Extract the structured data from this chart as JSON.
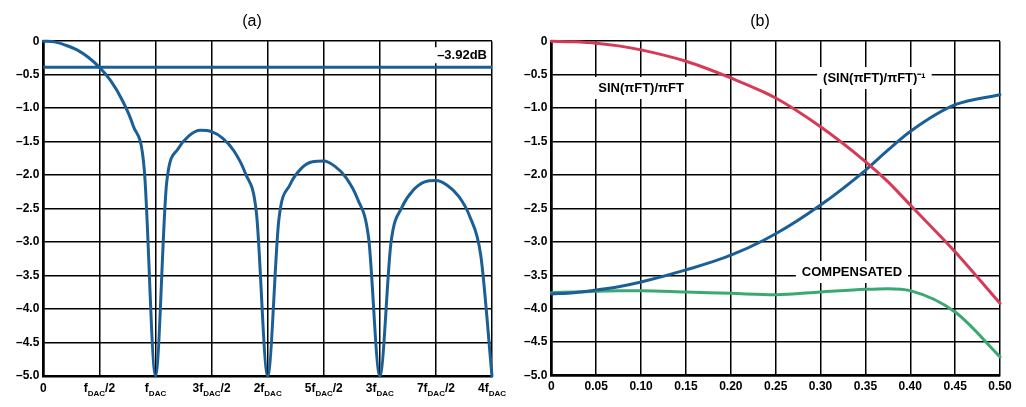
{
  "chart_data": [
    {
      "type": "line",
      "title": "(a)",
      "categories": [
        "0",
        null,
        null,
        null,
        null,
        "f$_{DAC}$/2",
        null,
        null,
        null,
        null,
        "f$_{DAC}$",
        null,
        null,
        null,
        null,
        "3f$_{DAC}$/2",
        null,
        null,
        null,
        null,
        "2f$_{DAC}$",
        null,
        null,
        null,
        null,
        "5f$_{DAC}$/2",
        null,
        null,
        null,
        null,
        "3f$_{DAC}$",
        null,
        null,
        null,
        null,
        "7f$_{DAC}$/2",
        null,
        null,
        null,
        null,
        "4f$_{DAC}$"
      ],
      "series": [
        {
          "color": "#1b5f97",
          "values": [
            0,
            -0.01,
            -0.06,
            -0.13,
            -0.24,
            -0.39,
            -0.59,
            -0.87,
            -1.26,
            -1.92,
            -5,
            -2.1,
            -1.61,
            -1.41,
            -1.33,
            -1.35,
            -1.45,
            -1.64,
            -1.97,
            -2.57,
            -5,
            -2.66,
            -2.14,
            -1.9,
            -1.8,
            -1.79,
            -1.87,
            -2.04,
            -2.35,
            -2.94,
            -5,
            -3.0,
            -2.47,
            -2.22,
            -2.1,
            -2.08,
            -2.15,
            -2.31,
            -2.61,
            -3.2,
            -5
          ]
        }
      ],
      "ylim": [
        -5,
        0
      ],
      "yticks": [
        0,
        {
          "value": -0.5,
          "label": "–0.5"
        },
        {
          "value": -1,
          "label": "–1.0"
        },
        {
          "value": -1.5,
          "label": "–1.5"
        },
        {
          "value": -2,
          "label": "–2.0"
        },
        {
          "value": -2.5,
          "label": "–2.5"
        },
        {
          "value": -3,
          "label": "–3.0"
        },
        {
          "value": -3.5,
          "label": "–3.5"
        },
        {
          "value": -4,
          "label": "–4.0"
        },
        {
          "value": -4.5,
          "label": "–4.5"
        },
        {
          "value": -5,
          "label": "–5.0"
        }
      ],
      "ref_lines": [
        {
          "axis": "y",
          "value": -0.39,
          "label": "–3.92dB",
          "color": "#1b5f97"
        }
      ],
      "grid": true,
      "legend": false,
      "marker": "none",
      "line_style": "solid"
    },
    {
      "type": "line",
      "title": "(b)",
      "x": [
        0,
        0.025,
        0.05,
        0.075,
        0.1,
        0.15,
        0.2,
        0.25,
        0.3,
        0.35,
        0.375,
        0.4,
        0.45,
        0.5
      ],
      "series": [
        {
          "color": "#d63a55",
          "values": [
            0,
            -0.01,
            -0.03,
            -0.07,
            -0.13,
            -0.3,
            -0.55,
            -0.85,
            -1.28,
            -1.8,
            -2.1,
            -2.45,
            -3.15,
            -3.92
          ]
        },
        {
          "color": "#1b5f97",
          "values": [
            -3.78,
            -3.76,
            -3.72,
            -3.67,
            -3.6,
            -3.42,
            -3.2,
            -2.88,
            -2.45,
            -1.93,
            -1.63,
            -1.35,
            -0.95,
            -0.8
          ]
        },
        {
          "color": "#3aa872",
          "values": [
            -3.76,
            -3.75,
            -3.74,
            -3.73,
            -3.73,
            -3.75,
            -3.77,
            -3.79,
            -3.75,
            -3.71,
            -3.7,
            -3.73,
            -4.05,
            -4.72
          ]
        }
      ],
      "xlim": [
        0,
        0.5
      ],
      "xticks": [
        0,
        {
          "value": 0.05,
          "label": "0.05"
        },
        {
          "value": 0.1,
          "label": "0.10"
        },
        {
          "value": 0.15,
          "label": "0.15"
        },
        {
          "value": 0.2,
          "label": "0.20"
        },
        {
          "value": 0.25,
          "label": "0.25"
        },
        {
          "value": 0.3,
          "label": "0.30"
        },
        {
          "value": 0.35,
          "label": "0.35"
        },
        {
          "value": 0.4,
          "label": "0.40"
        },
        {
          "value": 0.45,
          "label": "0.45"
        },
        {
          "value": 0.5,
          "label": "0.50"
        }
      ],
      "ylim": [
        -5,
        0
      ],
      "yticks": [
        0,
        {
          "value": -0.5,
          "label": "–0.5"
        },
        {
          "value": -1,
          "label": "–1.0"
        },
        {
          "value": -1.5,
          "label": "–1.5"
        },
        {
          "value": -2,
          "label": "–2.0"
        },
        {
          "value": -2.5,
          "label": "–2.5"
        },
        {
          "value": -3,
          "label": "–3.0"
        },
        {
          "value": -3.5,
          "label": "–3.5"
        },
        {
          "value": -4,
          "label": "–4.0"
        },
        {
          "value": -4.5,
          "label": "–4.5"
        },
        {
          "value": -5,
          "label": "–5.0"
        }
      ],
      "annotations": [
        "SIN(πFT)/πFT",
        "(SIN(πFT)/πFT)⁻¹",
        "COMPENSATED"
      ],
      "grid": true,
      "legend": false,
      "marker": "none",
      "line_style": "solid"
    }
  ]
}
